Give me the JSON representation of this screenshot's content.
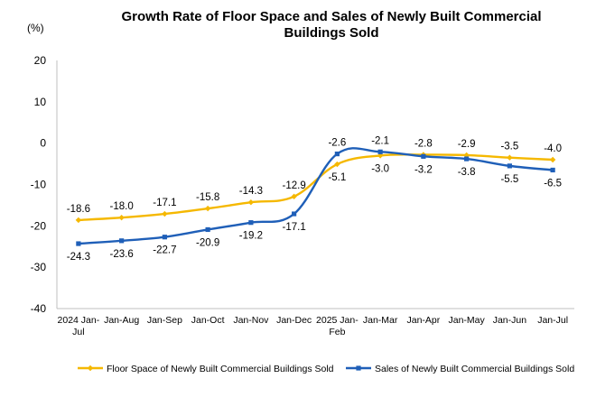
{
  "chart_data": {
    "type": "line",
    "title_lines": [
      "Growth Rate of Floor Space and Sales of Newly Built Commercial",
      "Buildings Sold"
    ],
    "unit_label": "(%)",
    "categories": [
      [
        "2024 Jan-",
        "Jul"
      ],
      [
        "Jan-Aug"
      ],
      [
        "Jan-Sep"
      ],
      [
        "Jan-Oct"
      ],
      [
        "Jan-Nov"
      ],
      [
        "Jan-Dec"
      ],
      [
        "2025 Jan-",
        "Feb"
      ],
      [
        "Jan-Mar"
      ],
      [
        "Jan-Apr"
      ],
      [
        "Jan-May"
      ],
      [
        "Jan-Jun"
      ],
      [
        "Jan-Jul"
      ]
    ],
    "ylim": [
      -40,
      20
    ],
    "yticks": [
      20,
      10,
      0,
      -10,
      -20,
      -30,
      -40
    ],
    "grid": false,
    "legend_position": "bottom",
    "series": [
      {
        "name": "Floor Space of Newly Built Commercial Buildings Sold",
        "color": "#F5B800",
        "marker": "diamond",
        "values": [
          -18.6,
          -18.0,
          -17.1,
          -15.8,
          -14.3,
          -12.9,
          -5.1,
          -3.0,
          -2.8,
          -2.9,
          -3.5,
          -4.0
        ],
        "labels": [
          "-18.6",
          "-18.0",
          "-17.1",
          "-15.8",
          "-14.3",
          "-12.9",
          "-5.1",
          "-3.0",
          "-2.8",
          "-2.9",
          "-3.5",
          "-4.0"
        ]
      },
      {
        "name": "Sales of Newly Built Commercial Buildings Sold",
        "color": "#1F5FB8",
        "marker": "square",
        "values": [
          -24.3,
          -23.6,
          -22.7,
          -20.9,
          -19.2,
          -17.1,
          -2.6,
          -2.1,
          -3.2,
          -3.8,
          -5.5,
          -6.5
        ],
        "labels": [
          "-24.3",
          "-23.6",
          "-22.7",
          "-20.9",
          "-19.2",
          "-17.1",
          "-2.6",
          "-2.1",
          "-3.2",
          "-3.8",
          "-5.5",
          "-6.5"
        ]
      }
    ]
  }
}
